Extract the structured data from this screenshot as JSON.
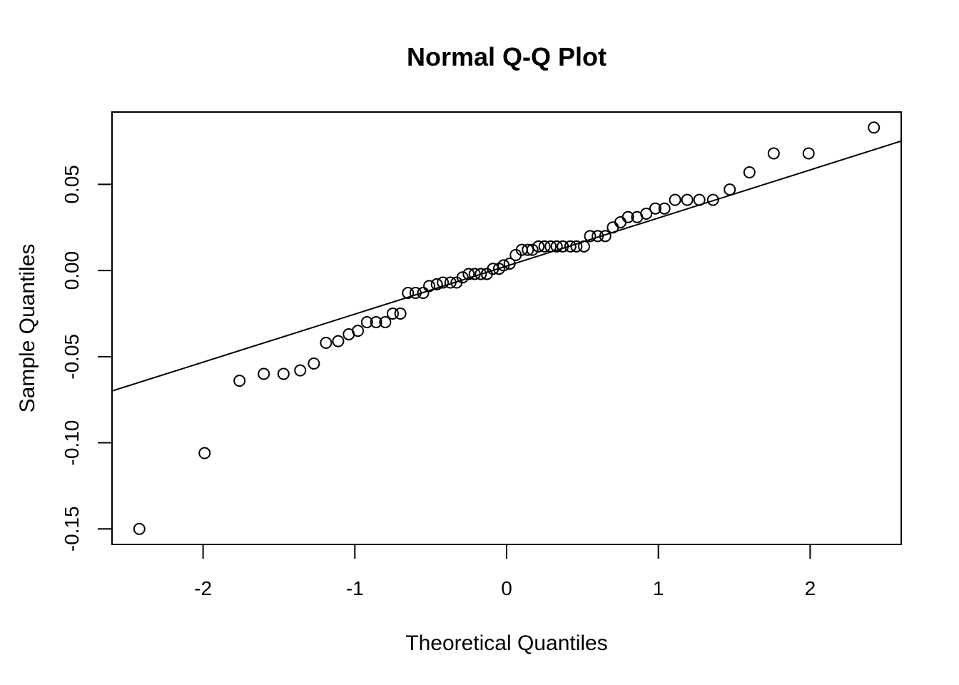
{
  "chart_data": {
    "type": "scatter",
    "title": "Normal Q-Q Plot",
    "xlabel": "Theoretical Quantiles",
    "ylabel": "Sample Quantiles",
    "xlim": [
      -2.6,
      2.6
    ],
    "ylim": [
      -0.159,
      0.092
    ],
    "x_ticks": [
      -2,
      -1,
      0,
      1,
      2
    ],
    "x_tick_labels": [
      "-2",
      "-1",
      "0",
      "1",
      "2"
    ],
    "y_ticks": [
      -0.15,
      -0.1,
      -0.05,
      0.0,
      0.05
    ],
    "y_tick_labels": [
      "-0.15",
      "-0.10",
      "-0.05",
      "0.00",
      "0.05"
    ],
    "grid": false,
    "marker": "open-circle",
    "reference_line": {
      "intercept": 0.0026,
      "slope": 0.0279
    },
    "points": [
      [
        -2.42,
        -0.15
      ],
      [
        -1.99,
        -0.106
      ],
      [
        -1.76,
        -0.064
      ],
      [
        -1.6,
        -0.06
      ],
      [
        -1.47,
        -0.06
      ],
      [
        -1.36,
        -0.058
      ],
      [
        -1.27,
        -0.054
      ],
      [
        -1.19,
        -0.042
      ],
      [
        -1.11,
        -0.041
      ],
      [
        -1.04,
        -0.037
      ],
      [
        -0.98,
        -0.035
      ],
      [
        -0.92,
        -0.03
      ],
      [
        -0.86,
        -0.03
      ],
      [
        -0.8,
        -0.03
      ],
      [
        -0.75,
        -0.025
      ],
      [
        -0.7,
        -0.025
      ],
      [
        -0.65,
        -0.013
      ],
      [
        -0.6,
        -0.013
      ],
      [
        -0.55,
        -0.013
      ],
      [
        -0.51,
        -0.009
      ],
      [
        -0.46,
        -0.008
      ],
      [
        -0.42,
        -0.007
      ],
      [
        -0.37,
        -0.007
      ],
      [
        -0.33,
        -0.007
      ],
      [
        -0.29,
        -0.004
      ],
      [
        -0.25,
        -0.002
      ],
      [
        -0.21,
        -0.002
      ],
      [
        -0.17,
        -0.002
      ],
      [
        -0.13,
        -0.002
      ],
      [
        -0.09,
        0.001
      ],
      [
        -0.05,
        0.001
      ],
      [
        -0.02,
        0.003
      ],
      [
        0.02,
        0.004
      ],
      [
        0.06,
        0.009
      ],
      [
        0.1,
        0.012
      ],
      [
        0.14,
        0.012
      ],
      [
        0.17,
        0.012
      ],
      [
        0.21,
        0.014
      ],
      [
        0.25,
        0.014
      ],
      [
        0.29,
        0.014
      ],
      [
        0.33,
        0.014
      ],
      [
        0.37,
        0.014
      ],
      [
        0.42,
        0.014
      ],
      [
        0.46,
        0.014
      ],
      [
        0.51,
        0.014
      ],
      [
        0.55,
        0.02
      ],
      [
        0.6,
        0.02
      ],
      [
        0.65,
        0.02
      ],
      [
        0.7,
        0.025
      ],
      [
        0.75,
        0.028
      ],
      [
        0.8,
        0.031
      ],
      [
        0.86,
        0.031
      ],
      [
        0.92,
        0.033
      ],
      [
        0.98,
        0.036
      ],
      [
        1.04,
        0.036
      ],
      [
        1.11,
        0.041
      ],
      [
        1.19,
        0.041
      ],
      [
        1.27,
        0.041
      ],
      [
        1.36,
        0.041
      ],
      [
        1.47,
        0.047
      ],
      [
        1.6,
        0.057
      ],
      [
        1.76,
        0.068
      ],
      [
        1.99,
        0.068
      ],
      [
        2.42,
        0.083
      ]
    ]
  }
}
